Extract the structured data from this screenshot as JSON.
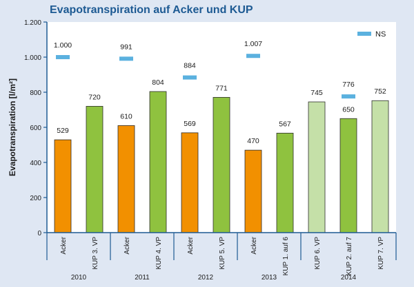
{
  "chart_data": {
    "type": "bar",
    "title": "Evapotranspiration auf Acker und KUP",
    "ylabel": "Evapotranspiration [l/m²]",
    "ylim": [
      0,
      1200
    ],
    "yticks": [
      0,
      200,
      400,
      600,
      800,
      1000,
      1200
    ],
    "ytick_labels": [
      "0",
      "200",
      "400",
      "600",
      "800",
      "1.000",
      "1.200"
    ],
    "grid": false,
    "legend": {
      "position": "top-right",
      "entries": [
        {
          "label": "NS",
          "color": "#5bb1df"
        }
      ]
    },
    "categories": [
      "Acker",
      "KUP 3. VP",
      "Acker",
      "KUP 4. VP",
      "Acker",
      "KUP 5. VP",
      "Acker",
      "KUP 1. auf 6",
      "KUP 6. VP",
      "KUP 2. auf 7",
      "KUP 7. VP"
    ],
    "bars": [
      {
        "value": 529,
        "label": "529",
        "color": "#f29000"
      },
      {
        "value": 720,
        "label": "720",
        "color": "#8fc23f"
      },
      {
        "value": 610,
        "label": "610",
        "color": "#f29000"
      },
      {
        "value": 804,
        "label": "804",
        "color": "#8fc23f"
      },
      {
        "value": 569,
        "label": "569",
        "color": "#f29000"
      },
      {
        "value": 771,
        "label": "771",
        "color": "#8fc23f"
      },
      {
        "value": 470,
        "label": "470",
        "color": "#f29000"
      },
      {
        "value": 567,
        "label": "567",
        "color": "#8fc23f"
      },
      {
        "value": 745,
        "label": "745",
        "color": "#c5e0a8"
      },
      {
        "value": 650,
        "label": "650",
        "color": "#8fc23f"
      },
      {
        "value": 752,
        "label": "752",
        "color": "#c5e0a8"
      }
    ],
    "ns_series": [
      {
        "year": "2010",
        "value": 1000,
        "label": "1.000"
      },
      {
        "year": "2011",
        "value": 991,
        "label": "991"
      },
      {
        "year": "2012",
        "value": 884,
        "label": "884"
      },
      {
        "year": "2013",
        "value": 1007,
        "label": "1.007"
      },
      {
        "year": "2014",
        "value": 776,
        "label": "776"
      }
    ],
    "years": [
      {
        "label": "2010",
        "bars": 2
      },
      {
        "label": "2011",
        "bars": 2
      },
      {
        "label": "2012",
        "bars": 2
      },
      {
        "label": "2013",
        "bars": 2
      },
      {
        "label": "2014",
        "bars": 3
      }
    ],
    "colors": {
      "axis": "#1d5a93",
      "title": "#1d5a93",
      "ns_marker": "#5bb1df",
      "plot_bg": "#ffffff"
    }
  }
}
